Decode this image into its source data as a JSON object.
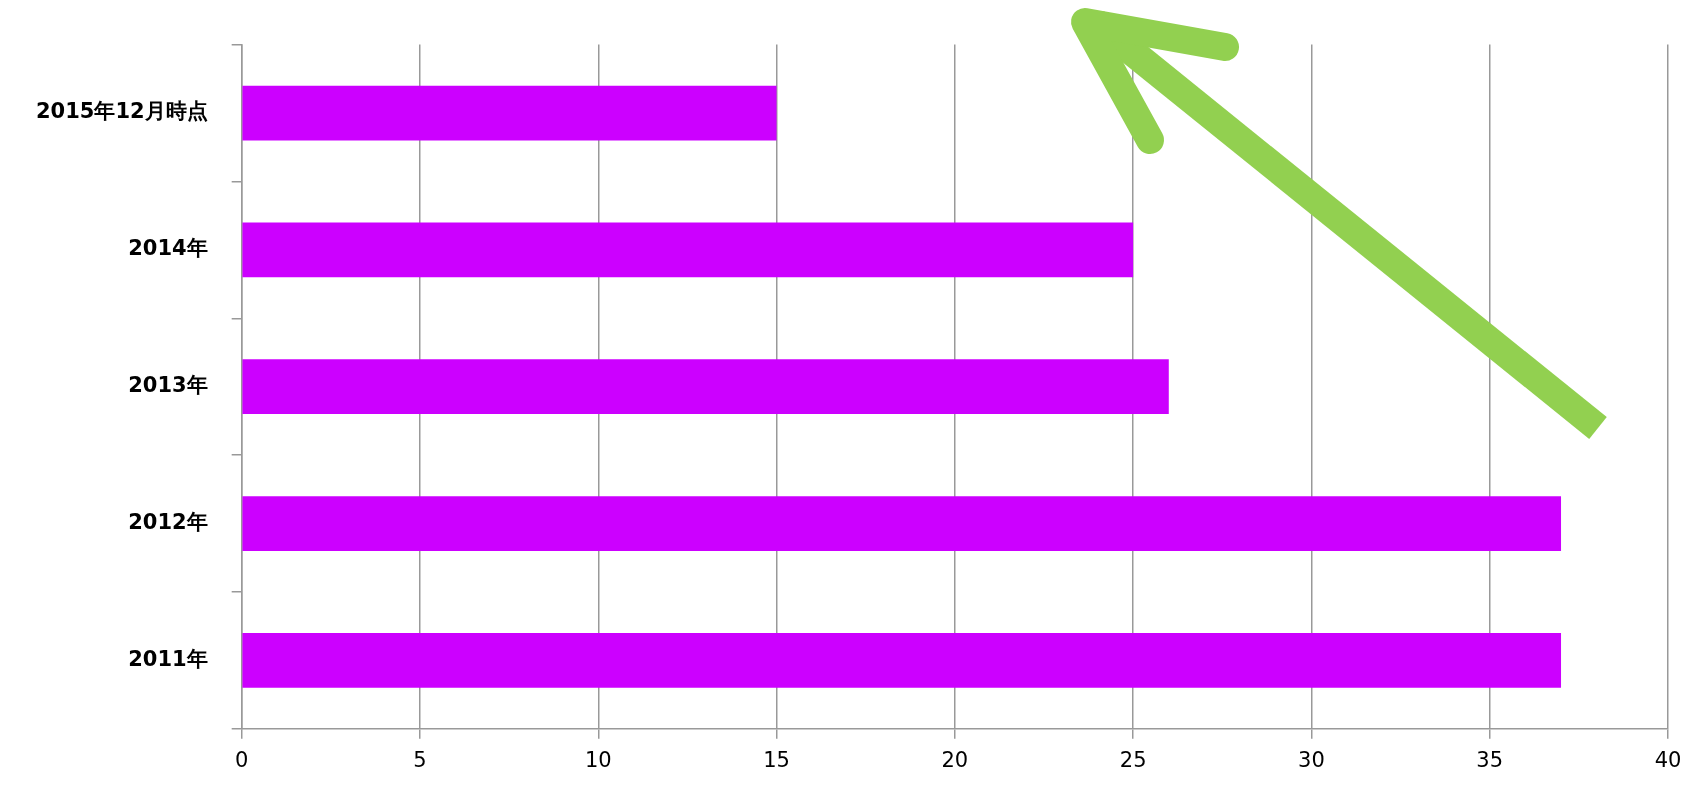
{
  "chart_data": {
    "type": "bar",
    "orientation": "horizontal",
    "categories": [
      "2015年12月時点",
      "2014年",
      "2013年",
      "2012年",
      "2011年"
    ],
    "values": [
      15,
      25,
      26,
      37,
      37
    ],
    "color": "#cc00ff",
    "xlim": [
      0,
      40
    ],
    "xticks": [
      0,
      5,
      10,
      15,
      20,
      25,
      30,
      35,
      40
    ],
    "grid": "x",
    "legend": false
  }
}
